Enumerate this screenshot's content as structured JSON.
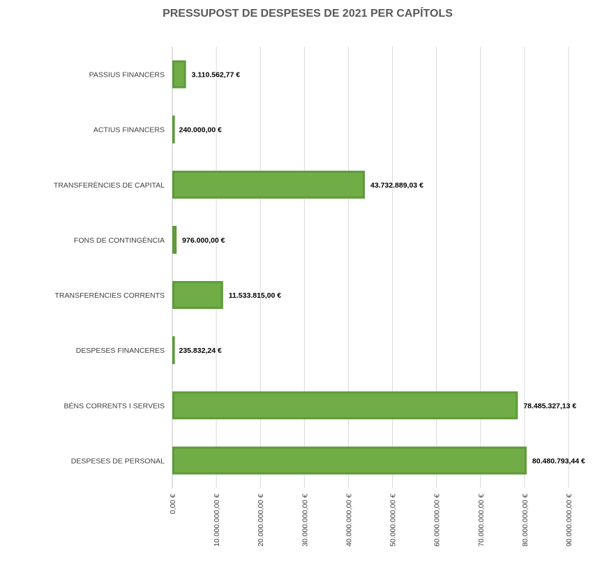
{
  "chart_data": {
    "type": "bar",
    "orientation": "horizontal",
    "title": "PRESSUPOST DE DESPESES DE 2021 PER CAPÍTOLS",
    "categories": [
      "PASSIUS FINANCERS",
      "ACTIUS FINANCERS",
      "TRANSFERÈNCIES DE CAPITAL",
      "FONS DE CONTINGÈNCIA",
      "TRANSFERÈNCIES CORRENTS",
      "DESPESES FINANCERES",
      "BÉNS CORRENTS I SERVEIS",
      "DESPESES DE PERSONAL"
    ],
    "values": [
      3110562.77,
      240000.0,
      43732889.03,
      976000.0,
      11533815.0,
      235832.24,
      78485327.13,
      80480793.44
    ],
    "data_labels": [
      "3.110.562,77 €",
      "240.000,00 €",
      "43.732.889,03 €",
      "976.000,00 €",
      "11.533.815,00 €",
      "235.832,24 €",
      "78.485.327,13 €",
      "80.480.793,44 €"
    ],
    "xlim": [
      0,
      90000000
    ],
    "x_ticks": [
      0,
      10000000,
      20000000,
      30000000,
      40000000,
      50000000,
      60000000,
      70000000,
      80000000,
      90000000
    ],
    "x_tick_labels": [
      "0,00 €",
      "10.000.000,00 €",
      "20.000.000,00 €",
      "30.000.000,00 €",
      "40.000.000,00 €",
      "50.000.000,00 €",
      "60.000.000,00 €",
      "70.000.000,00 €",
      "80.000.000,00 €",
      "90.000.000,00 €"
    ],
    "grid": true,
    "legend": "none",
    "colors": {
      "bar_fill": "#70ad47",
      "bar_border": "#5e9a3a"
    }
  }
}
